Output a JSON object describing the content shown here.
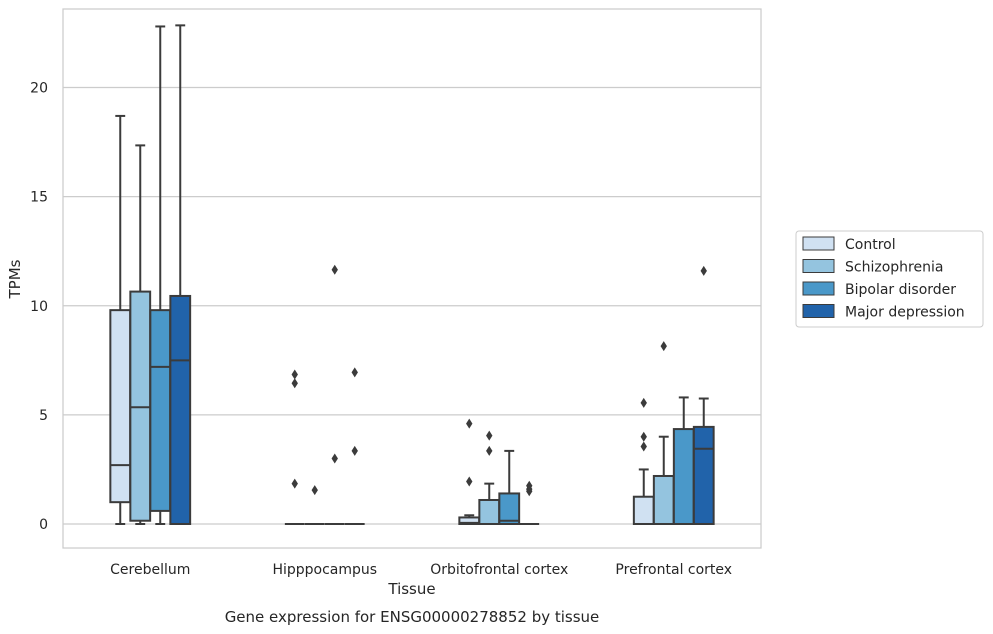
{
  "chart_data": {
    "type": "box",
    "caption": "Gene expression for ENSG00000278852 by tissue",
    "xlabel": "Tissue",
    "ylabel": "TPMs",
    "ylim": [
      -1.1,
      23.6
    ],
    "yticks": [
      0,
      5,
      10,
      15,
      20
    ],
    "grid": true,
    "legend_position": "right",
    "categories": [
      "Cerebellum",
      "Hipppocampus",
      "Orbitofrontal cortex",
      "Prefrontal cortex"
    ],
    "series": [
      {
        "name": "Control",
        "color": "#d0e1f2",
        "boxes": [
          {
            "whislo": 0,
            "q1": 1.0,
            "med": 2.7,
            "q3": 9.8,
            "whishi": 18.7,
            "fliers": []
          },
          {
            "whislo": 0,
            "q1": 0,
            "med": 0,
            "q3": 0,
            "whishi": 0,
            "fliers": [
              1.85,
              6.45,
              6.85
            ]
          },
          {
            "whislo": 0,
            "q1": 0,
            "med": 0.05,
            "q3": 0.3,
            "whishi": 0.4,
            "fliers": [
              1.95,
              4.6
            ]
          },
          {
            "whislo": 0,
            "q1": 0,
            "med": 0,
            "q3": 1.25,
            "whishi": 2.5,
            "fliers": [
              3.55,
              4.0,
              5.55
            ]
          }
        ]
      },
      {
        "name": "Schizophrenia",
        "color": "#94c4df",
        "boxes": [
          {
            "whislo": 0,
            "q1": 0.15,
            "med": 5.35,
            "q3": 10.65,
            "whishi": 17.35,
            "fliers": []
          },
          {
            "whislo": 0,
            "q1": 0,
            "med": 0,
            "q3": 0,
            "whishi": 0,
            "fliers": [
              1.55
            ]
          },
          {
            "whislo": 0,
            "q1": 0,
            "med": 0,
            "q3": 1.1,
            "whishi": 1.85,
            "fliers": [
              3.35,
              4.05
            ]
          },
          {
            "whislo": 0,
            "q1": 0,
            "med": 0,
            "q3": 2.2,
            "whishi": 4.0,
            "fliers": [
              8.15
            ]
          }
        ]
      },
      {
        "name": "Bipolar disorder",
        "color": "#4a98c9",
        "boxes": [
          {
            "whislo": 0,
            "q1": 0.6,
            "med": 7.2,
            "q3": 9.8,
            "whishi": 22.8,
            "fliers": []
          },
          {
            "whislo": 0,
            "q1": 0,
            "med": 0,
            "q3": 0,
            "whishi": 0,
            "fliers": [
              3.0,
              11.65
            ]
          },
          {
            "whislo": 0,
            "q1": 0,
            "med": 0.15,
            "q3": 1.4,
            "whishi": 3.35,
            "fliers": []
          },
          {
            "whislo": 0,
            "q1": 0,
            "med": 0,
            "q3": 4.35,
            "whishi": 5.8,
            "fliers": []
          }
        ]
      },
      {
        "name": "Major depression",
        "color": "#2163aa",
        "boxes": [
          {
            "whislo": 0,
            "q1": 0,
            "med": 7.5,
            "q3": 10.45,
            "whishi": 22.85,
            "fliers": []
          },
          {
            "whislo": 0,
            "q1": 0,
            "med": 0,
            "q3": 0,
            "whishi": 0,
            "fliers": [
              3.35,
              6.95
            ]
          },
          {
            "whislo": 0,
            "q1": 0,
            "med": 0,
            "q3": 0,
            "whishi": 0,
            "fliers": [
              1.5,
              1.6,
              1.75
            ]
          },
          {
            "whislo": 0,
            "q1": 0,
            "med": 3.45,
            "q3": 4.45,
            "whishi": 5.75,
            "fliers": [
              11.6
            ]
          }
        ]
      }
    ]
  }
}
